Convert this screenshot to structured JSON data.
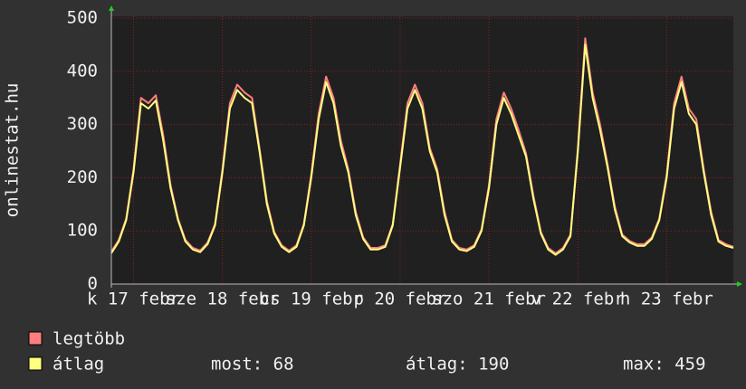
{
  "chart_data": {
    "type": "line",
    "ylabel": "onlinestat.hu",
    "x": [
      0,
      2,
      4,
      6,
      8,
      10,
      12,
      14,
      16,
      18,
      20,
      22,
      24,
      26,
      28,
      30,
      32,
      34,
      36,
      38,
      40,
      42,
      44,
      46,
      48,
      50,
      52,
      54,
      56,
      58,
      60,
      62,
      64,
      66,
      68,
      70,
      72,
      74,
      76,
      78,
      80,
      82,
      84,
      86,
      88,
      90,
      92,
      94,
      96,
      98,
      100,
      102,
      104,
      106,
      108,
      110,
      112,
      114,
      116,
      118,
      120,
      122,
      124,
      126,
      128,
      130,
      132,
      134,
      136,
      138,
      140,
      142,
      144,
      146,
      148,
      150,
      152,
      154,
      156,
      158,
      160,
      162,
      164,
      166,
      168
    ],
    "xlim": [
      0,
      168
    ],
    "xticks": [
      {
        "value": 6,
        "label": "k 17 febr"
      },
      {
        "value": 30,
        "label": "sze 18 febr"
      },
      {
        "value": 54,
        "label": "cs 19 febr"
      },
      {
        "value": 78,
        "label": "p 20 febr"
      },
      {
        "value": 102,
        "label": "szo 21 febr"
      },
      {
        "value": 126,
        "label": "v 22 febr"
      },
      {
        "value": 150,
        "label": "h 23 febr"
      }
    ],
    "ylim": [
      0,
      500
    ],
    "yticks": [
      0,
      100,
      200,
      300,
      400,
      500
    ],
    "grid": true,
    "series": [
      {
        "name": "legtöbb",
        "color": "#ff7f7f",
        "values": [
          61,
          83,
          123,
          216,
          350,
          340,
          355,
          280,
          186,
          123,
          83,
          68,
          63,
          78,
          113,
          216,
          340,
          375,
          360,
          350,
          256,
          156,
          98,
          73,
          63,
          73,
          113,
          206,
          320,
          390,
          350,
          270,
          216,
          136,
          88,
          68,
          68,
          73,
          113,
          226,
          340,
          375,
          340,
          256,
          216,
          136,
          83,
          68,
          65,
          73,
          103,
          186,
          310,
          360,
          330,
          290,
          246,
          166,
          98,
          68,
          58,
          68,
          93,
          256,
          462,
          360,
          300,
          226,
          146,
          93,
          81,
          75,
          75,
          88,
          123,
          206,
          340,
          390,
          330,
          310,
          216,
          136,
          83,
          75,
          70
        ]
      },
      {
        "name": "átlag",
        "color": "#ffff80",
        "values": [
          58,
          80,
          120,
          210,
          340,
          330,
          345,
          270,
          180,
          120,
          80,
          65,
          60,
          75,
          110,
          210,
          330,
          365,
          350,
          340,
          250,
          150,
          95,
          70,
          60,
          70,
          110,
          200,
          310,
          380,
          340,
          260,
          210,
          130,
          85,
          65,
          65,
          70,
          110,
          220,
          330,
          365,
          330,
          250,
          210,
          130,
          80,
          65,
          62,
          70,
          100,
          180,
          300,
          350,
          320,
          280,
          240,
          160,
          95,
          65,
          55,
          65,
          90,
          250,
          450,
          350,
          290,
          220,
          140,
          90,
          78,
          72,
          72,
          85,
          120,
          200,
          330,
          380,
          320,
          300,
          210,
          130,
          80,
          72,
          68
        ]
      }
    ],
    "legend_stats": [
      "most: 68",
      "átlag: 190",
      "max: 459"
    ]
  }
}
